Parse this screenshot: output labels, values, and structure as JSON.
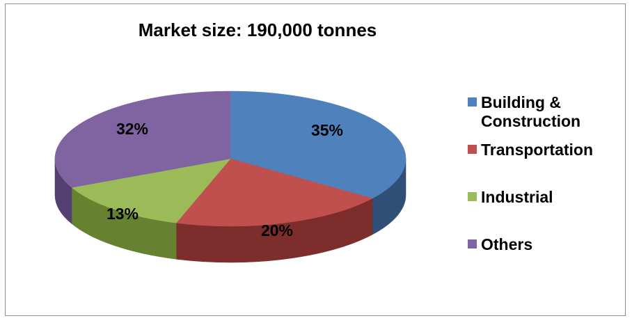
{
  "chart_data": {
    "type": "pie",
    "title": "Market size: 190,000 tonnes",
    "categories": [
      "Building & Construction",
      "Transportation",
      "Industrial",
      "Others"
    ],
    "values": [
      35,
      20,
      13,
      32
    ],
    "labels": [
      "35%",
      "20%",
      "13%",
      "32%"
    ],
    "colors": [
      "#4f81bd",
      "#c0504d",
      "#9bbb59",
      "#8064a2"
    ],
    "side_colors": [
      "#2f4f77",
      "#7d2d2b",
      "#66812f",
      "#533f70"
    ],
    "legend_position": "right"
  }
}
